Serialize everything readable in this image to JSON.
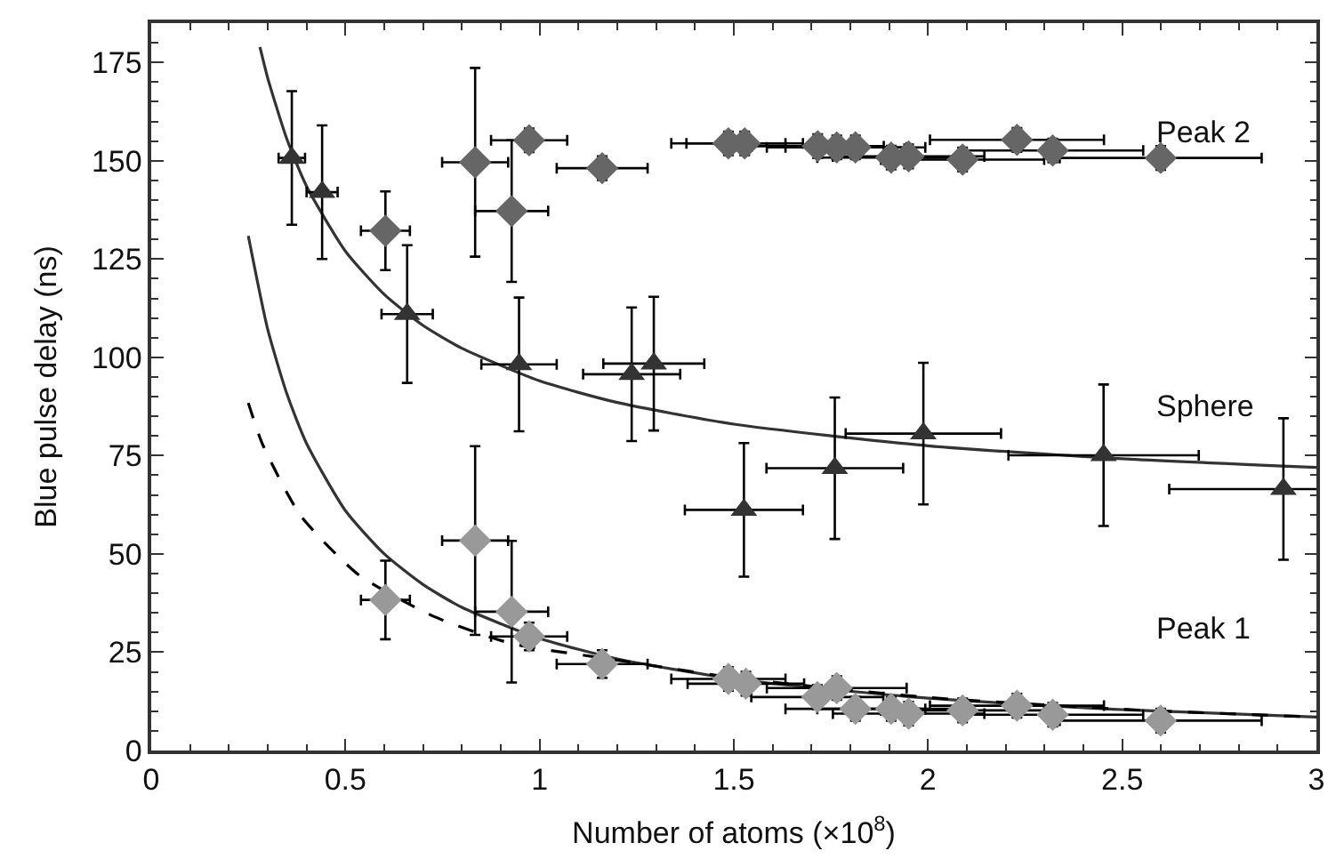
{
  "chart_data": {
    "type": "scatter",
    "xlabel": "Number of atoms (×10$^{8}$)",
    "ylabel": "Blue pulse delay (ns)",
    "xlim": [
      0,
      3
    ],
    "xticks": [
      0,
      0.5,
      1,
      1.5,
      2,
      2.5,
      3
    ],
    "ylim": [
      0,
      185
    ],
    "yticks": [
      0,
      25,
      50,
      75,
      100,
      125,
      150,
      175
    ],
    "grid": false,
    "series": [
      {
        "type": "line",
        "color": "#333333",
        "marker": "none",
        "line_style": "solid",
        "x": [
          0.28,
          0.3,
          0.35,
          0.4,
          0.5,
          0.6,
          0.7,
          0.8,
          1,
          1.2,
          1.5,
          2,
          2.5,
          3
        ],
        "values": [
          178.9,
          171,
          155.3,
          143.5,
          127,
          116,
          108.1,
          102.3,
          94,
          88.5,
          83,
          77.5,
          74.2,
          72
        ]
      },
      {
        "type": "line",
        "color": "#333333",
        "marker": "none",
        "line_style": "solid",
        "x": [
          0.25,
          0.3,
          0.35,
          0.4,
          0.5,
          0.6,
          0.7,
          0.8,
          1,
          1.2,
          1.5,
          2,
          2.5,
          3
        ],
        "values": [
          130.9,
          107.1,
          90.5,
          78.1,
          61.0,
          50.0,
          42.2,
          36.4,
          28.5,
          23.3,
          18.2,
          13.3,
          10.4,
          8.5
        ]
      },
      {
        "type": "line",
        "color": "#000000",
        "marker": "none",
        "line_style": "dashed",
        "x": [
          0.25,
          0.287,
          0.385,
          0.535,
          0.73,
          0.928,
          1.2,
          1.5,
          2,
          2.5,
          3
        ],
        "values": [
          88.4,
          77.8,
          59.7,
          44.6,
          34,
          27.2,
          23,
          18.5,
          13.5,
          10.5,
          8.5
        ]
      },
      {
        "color": "#333333",
        "marker": "triangle",
        "x": [
          0.362,
          0.44,
          0.659,
          0.947,
          1.237,
          1.294,
          1.526,
          1.76,
          1.988,
          2.452,
          2.915
        ],
        "values": [
          150.7,
          142,
          111,
          98.2,
          95.7,
          98.4,
          61.2,
          71.8,
          80.6,
          75.1,
          66.5
        ],
        "errors": [
          17,
          17,
          17.5,
          17,
          17,
          17,
          17,
          18,
          18,
          18,
          18
        ],
        "xerrors": [
          0.034,
          0.04,
          0.066,
          0.097,
          0.125,
          0.13,
          0.152,
          0.176,
          0.2,
          0.245,
          0.294
        ]
      },
      {
        "color": "#666666",
        "marker": "diamond",
        "x": [
          0.603,
          0.834,
          0.928,
          0.973,
          1.161,
          1.486,
          1.528,
          1.716,
          1.765,
          1.813,
          1.905,
          1.95,
          2.089,
          2.229,
          2.321,
          2.599
        ],
        "values": [
          132.2,
          149.6,
          137.2,
          155.2,
          148.1,
          154.4,
          154.4,
          153.7,
          153.4,
          153.4,
          150.8,
          151.1,
          150.3,
          155.3,
          152.6,
          150.7
        ],
        "errors": [
          10,
          24,
          18,
          3,
          3,
          3,
          3,
          3,
          3,
          3,
          3,
          3,
          3,
          3,
          3,
          3
        ],
        "xerrors": [
          0.063,
          0.085,
          0.094,
          0.098,
          0.117,
          0.147,
          0.15,
          0.17,
          0.18,
          0.18,
          0.19,
          0.195,
          0.21,
          0.224,
          0.233,
          0.26
        ]
      },
      {
        "color": "#999999",
        "marker": "diamond",
        "x": [
          0.603,
          0.834,
          0.928,
          0.973,
          1.161,
          1.486,
          1.531,
          1.715,
          1.765,
          1.813,
          1.905,
          1.95,
          2.089,
          2.229,
          2.321,
          2.599
        ],
        "values": [
          38.3,
          53.4,
          35.3,
          29.0,
          22.0,
          18.2,
          17.0,
          13.6,
          15.9,
          10.6,
          10.6,
          9.4,
          10.2,
          11.4,
          9.1,
          7.6
        ],
        "errors": [
          10,
          24,
          18,
          3.5,
          3.5,
          3,
          3,
          3,
          3,
          3,
          3,
          3,
          3,
          3,
          3,
          3
        ],
        "xerrors": [
          0.063,
          0.085,
          0.094,
          0.098,
          0.117,
          0.147,
          0.15,
          0.17,
          0.18,
          0.18,
          0.19,
          0.195,
          0.21,
          0.224,
          0.233,
          0.26
        ]
      }
    ],
    "annotations": [
      "Peak 2",
      "Sphere",
      "Peak 1"
    ]
  }
}
